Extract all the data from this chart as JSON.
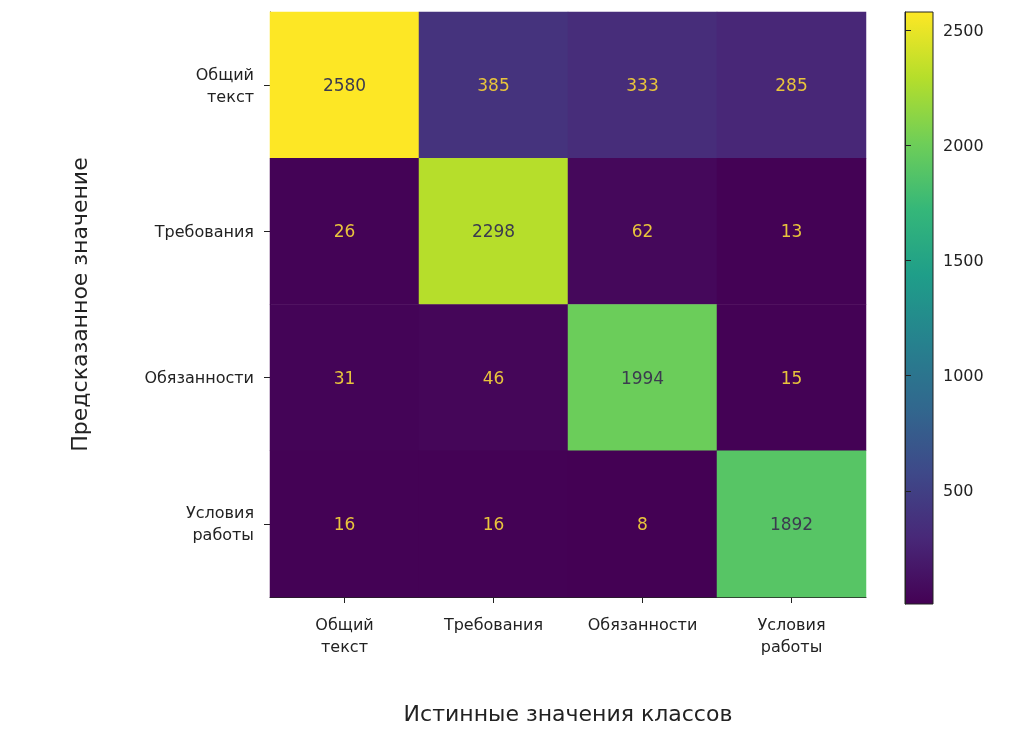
{
  "chart_data": {
    "type": "heatmap",
    "xlabel": "Истинные значения классов",
    "ylabel": "Предсказанное значение",
    "categories": [
      "Общий\nтекст",
      "Требования",
      "Обязанности",
      "Условия\nработы"
    ],
    "y_categories": [
      "Общий\nтекст",
      "Требования",
      "Обязанности",
      "Условия\nработы"
    ],
    "cells": [
      [
        2580,
        385,
        333,
        285
      ],
      [
        26,
        2298,
        62,
        13
      ],
      [
        31,
        46,
        1994,
        15
      ],
      [
        16,
        16,
        8,
        1892
      ]
    ],
    "data_labels": true,
    "clim": [
      8,
      2580
    ],
    "cticks": [
      500,
      1000,
      1500,
      2000,
      2500
    ]
  }
}
